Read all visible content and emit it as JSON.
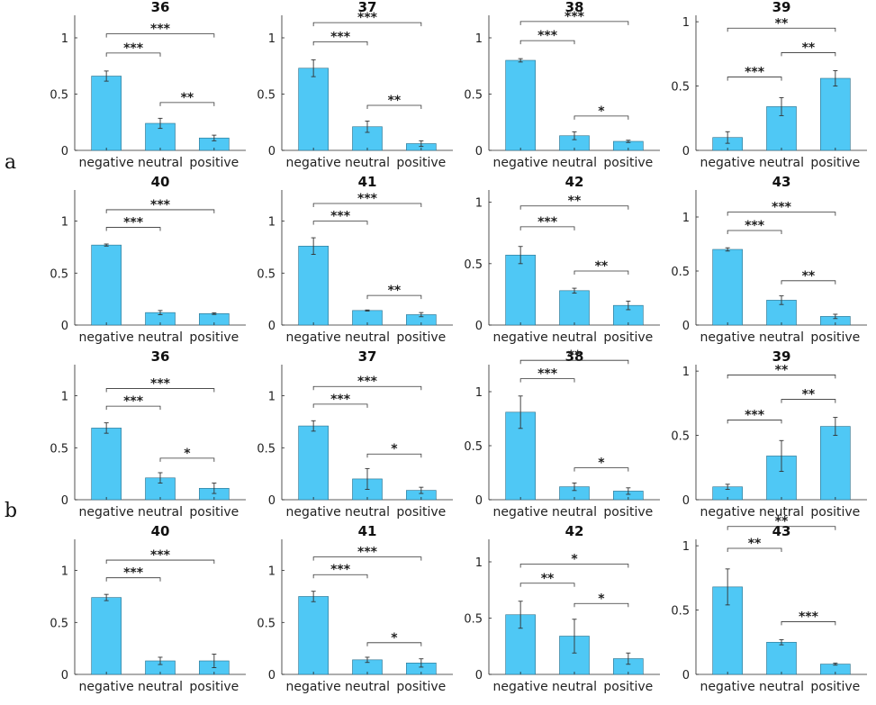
{
  "figure": {
    "row_labels": [
      "a",
      "b"
    ],
    "bar_color": "#4FC8F5",
    "categories": [
      "negative",
      "neutral",
      "positive"
    ]
  },
  "chart_data": [
    {
      "type": "bar",
      "title": "36",
      "categories": [
        "negative",
        "neutral",
        "positive"
      ],
      "values": [
        0.66,
        0.24,
        0.11
      ],
      "errors": [
        0.045,
        0.045,
        0.025
      ],
      "ylim": [
        0,
        1.2
      ],
      "yticks": [
        "0",
        "0.5",
        "1"
      ],
      "significance": [
        {
          "pair": [
            0,
            2
          ],
          "label": "***"
        },
        {
          "pair": [
            0,
            1
          ],
          "label": "***"
        },
        {
          "pair": [
            1,
            2
          ],
          "label": "**"
        }
      ]
    },
    {
      "type": "bar",
      "title": "37",
      "categories": [
        "negative",
        "neutral",
        "positive"
      ],
      "values": [
        0.73,
        0.21,
        0.06
      ],
      "errors": [
        0.075,
        0.05,
        0.025
      ],
      "ylim": [
        0,
        1.2
      ],
      "yticks": [
        "0",
        "0.5",
        "1"
      ],
      "significance": [
        {
          "pair": [
            0,
            2
          ],
          "label": "***"
        },
        {
          "pair": [
            0,
            1
          ],
          "label": "***"
        },
        {
          "pair": [
            1,
            2
          ],
          "label": "**"
        }
      ]
    },
    {
      "type": "bar",
      "title": "38",
      "categories": [
        "negative",
        "neutral",
        "positive"
      ],
      "values": [
        0.8,
        0.13,
        0.08
      ],
      "errors": [
        0.015,
        0.035,
        0.01
      ],
      "ylim": [
        0,
        1.2
      ],
      "yticks": [
        "0",
        "0.5",
        "1"
      ],
      "significance": [
        {
          "pair": [
            0,
            2
          ],
          "label": "***"
        },
        {
          "pair": [
            0,
            1
          ],
          "label": "***"
        },
        {
          "pair": [
            1,
            2
          ],
          "label": "*"
        }
      ]
    },
    {
      "type": "bar",
      "title": "39",
      "categories": [
        "negative",
        "neutral",
        "positive"
      ],
      "values": [
        0.1,
        0.34,
        0.56
      ],
      "errors": [
        0.045,
        0.07,
        0.06
      ],
      "ylim": [
        0,
        1.05
      ],
      "yticks": [
        "0",
        "0.5",
        "1"
      ],
      "significance": [
        {
          "pair": [
            0,
            2
          ],
          "label": "**"
        },
        {
          "pair": [
            0,
            1
          ],
          "label": "***"
        },
        {
          "pair": [
            1,
            2
          ],
          "label": "**"
        }
      ]
    },
    {
      "type": "bar",
      "title": "40",
      "categories": [
        "negative",
        "neutral",
        "positive"
      ],
      "values": [
        0.77,
        0.12,
        0.11
      ],
      "errors": [
        0.01,
        0.02,
        0.008
      ],
      "ylim": [
        0,
        1.3
      ],
      "yticks": [
        "0",
        "0.5",
        "1"
      ],
      "significance": [
        {
          "pair": [
            0,
            2
          ],
          "label": "***"
        },
        {
          "pair": [
            0,
            1
          ],
          "label": "***"
        }
      ]
    },
    {
      "type": "bar",
      "title": "41",
      "categories": [
        "negative",
        "neutral",
        "positive"
      ],
      "values": [
        0.76,
        0.14,
        0.1
      ],
      "errors": [
        0.08,
        0.005,
        0.02
      ],
      "ylim": [
        0,
        1.3
      ],
      "yticks": [
        "0",
        "0.5",
        "1"
      ],
      "significance": [
        {
          "pair": [
            0,
            2
          ],
          "label": "***"
        },
        {
          "pair": [
            0,
            1
          ],
          "label": "***"
        },
        {
          "pair": [
            1,
            2
          ],
          "label": "**"
        }
      ]
    },
    {
      "type": "bar",
      "title": "42",
      "categories": [
        "negative",
        "neutral",
        "positive"
      ],
      "values": [
        0.57,
        0.28,
        0.16
      ],
      "errors": [
        0.07,
        0.02,
        0.035
      ],
      "ylim": [
        0,
        1.1
      ],
      "yticks": [
        "0",
        "0.5",
        "1"
      ],
      "significance": [
        {
          "pair": [
            0,
            2
          ],
          "label": "**"
        },
        {
          "pair": [
            0,
            1
          ],
          "label": "***"
        },
        {
          "pair": [
            1,
            2
          ],
          "label": "**"
        }
      ]
    },
    {
      "type": "bar",
      "title": "43",
      "categories": [
        "negative",
        "neutral",
        "positive"
      ],
      "values": [
        0.7,
        0.23,
        0.08
      ],
      "errors": [
        0.015,
        0.04,
        0.02
      ],
      "ylim": [
        0,
        1.25
      ],
      "yticks": [
        "0",
        "0.5",
        "1"
      ],
      "significance": [
        {
          "pair": [
            0,
            2
          ],
          "label": "***"
        },
        {
          "pair": [
            0,
            1
          ],
          "label": "***"
        },
        {
          "pair": [
            1,
            2
          ],
          "label": "**"
        }
      ]
    },
    {
      "type": "bar",
      "title": "36",
      "categories": [
        "negative",
        "neutral",
        "positive"
      ],
      "values": [
        0.69,
        0.21,
        0.11
      ],
      "errors": [
        0.05,
        0.05,
        0.05
      ],
      "ylim": [
        0,
        1.3
      ],
      "yticks": [
        "0",
        "0.5",
        "1"
      ],
      "significance": [
        {
          "pair": [
            0,
            2
          ],
          "label": "***"
        },
        {
          "pair": [
            0,
            1
          ],
          "label": "***"
        },
        {
          "pair": [
            1,
            2
          ],
          "label": "*"
        }
      ]
    },
    {
      "type": "bar",
      "title": "37",
      "categories": [
        "negative",
        "neutral",
        "positive"
      ],
      "values": [
        0.71,
        0.2,
        0.09
      ],
      "errors": [
        0.05,
        0.1,
        0.03
      ],
      "ylim": [
        0,
        1.3
      ],
      "yticks": [
        "0",
        "0.5",
        "1"
      ],
      "significance": [
        {
          "pair": [
            0,
            2
          ],
          "label": "***"
        },
        {
          "pair": [
            0,
            1
          ],
          "label": "***"
        },
        {
          "pair": [
            1,
            2
          ],
          "label": "*"
        }
      ]
    },
    {
      "type": "bar",
      "title": "38",
      "categories": [
        "negative",
        "neutral",
        "positive"
      ],
      "values": [
        0.81,
        0.12,
        0.08
      ],
      "errors": [
        0.15,
        0.035,
        0.03
      ],
      "ylim": [
        0,
        1.25
      ],
      "yticks": [
        "0",
        "0.5",
        "1"
      ],
      "significance": [
        {
          "pair": [
            0,
            2
          ],
          "label": "**"
        },
        {
          "pair": [
            0,
            1
          ],
          "label": "***"
        },
        {
          "pair": [
            1,
            2
          ],
          "label": "*"
        }
      ]
    },
    {
      "type": "bar",
      "title": "39",
      "categories": [
        "negative",
        "neutral",
        "positive"
      ],
      "values": [
        0.1,
        0.34,
        0.57
      ],
      "errors": [
        0.02,
        0.12,
        0.07
      ],
      "ylim": [
        0,
        1.05
      ],
      "yticks": [
        "0",
        "0.5",
        "1"
      ],
      "significance": [
        {
          "pair": [
            0,
            2
          ],
          "label": "**"
        },
        {
          "pair": [
            0,
            1
          ],
          "label": "***"
        },
        {
          "pair": [
            1,
            2
          ],
          "label": "**"
        }
      ]
    },
    {
      "type": "bar",
      "title": "40",
      "categories": [
        "negative",
        "neutral",
        "positive"
      ],
      "values": [
        0.74,
        0.13,
        0.13
      ],
      "errors": [
        0.03,
        0.035,
        0.065
      ],
      "ylim": [
        0,
        1.3
      ],
      "yticks": [
        "0",
        "0.5",
        "1"
      ],
      "significance": [
        {
          "pair": [
            0,
            2
          ],
          "label": "***"
        },
        {
          "pair": [
            0,
            1
          ],
          "label": "***"
        }
      ]
    },
    {
      "type": "bar",
      "title": "41",
      "categories": [
        "negative",
        "neutral",
        "positive"
      ],
      "values": [
        0.75,
        0.14,
        0.11
      ],
      "errors": [
        0.05,
        0.025,
        0.04
      ],
      "ylim": [
        0,
        1.3
      ],
      "yticks": [
        "0",
        "0.5",
        "1"
      ],
      "significance": [
        {
          "pair": [
            0,
            2
          ],
          "label": "***"
        },
        {
          "pair": [
            0,
            1
          ],
          "label": "***"
        },
        {
          "pair": [
            1,
            2
          ],
          "label": "*"
        }
      ]
    },
    {
      "type": "bar",
      "title": "42",
      "categories": [
        "negative",
        "neutral",
        "positive"
      ],
      "values": [
        0.53,
        0.34,
        0.14
      ],
      "errors": [
        0.12,
        0.15,
        0.05
      ],
      "ylim": [
        0,
        1.2
      ],
      "yticks": [
        "0",
        "0.5",
        "1"
      ],
      "significance": [
        {
          "pair": [
            0,
            2
          ],
          "label": "*"
        },
        {
          "pair": [
            0,
            1
          ],
          "label": "**"
        },
        {
          "pair": [
            1,
            2
          ],
          "label": "*"
        }
      ]
    },
    {
      "type": "bar",
      "title": "43",
      "categories": [
        "negative",
        "neutral",
        "positive"
      ],
      "values": [
        0.68,
        0.25,
        0.08
      ],
      "errors": [
        0.14,
        0.02,
        0.008
      ],
      "ylim": [
        0,
        1.05
      ],
      "yticks": [
        "0",
        "0.5",
        "1"
      ],
      "significance": [
        {
          "pair": [
            0,
            2
          ],
          "label": "**"
        },
        {
          "pair": [
            0,
            1
          ],
          "label": "**"
        },
        {
          "pair": [
            1,
            2
          ],
          "label": "***"
        }
      ]
    }
  ]
}
